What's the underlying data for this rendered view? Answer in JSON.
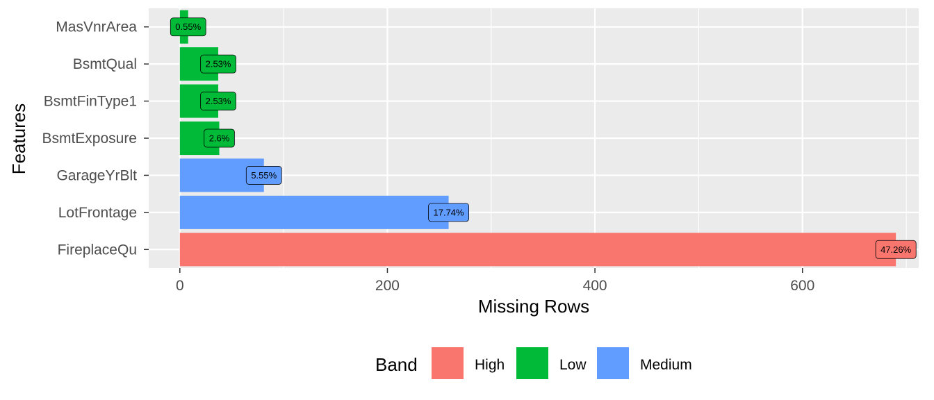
{
  "chart_data": {
    "type": "bar",
    "orientation": "horizontal",
    "categories": [
      "MasVnrArea",
      "BsmtQual",
      "BsmtFinType1",
      "BsmtExposure",
      "GarageYrBlt",
      "LotFrontage",
      "FireplaceQu"
    ],
    "values": [
      8,
      37,
      37,
      38,
      81,
      259,
      690
    ],
    "labels": [
      "0.55%",
      "2.53%",
      "2.53%",
      "2.6%",
      "5.55%",
      "17.74%",
      "47.26%"
    ],
    "bands": [
      "Low",
      "Low",
      "Low",
      "Low",
      "Medium",
      "Medium",
      "High"
    ],
    "xlabel": "Missing Rows",
    "ylabel": "Features",
    "xlim": [
      -30,
      712
    ],
    "xticks": [
      0,
      200,
      400,
      600
    ],
    "grid": true,
    "legend": {
      "title": "Band",
      "position": "bottom",
      "entries": [
        {
          "name": "High",
          "color": "#F8766D"
        },
        {
          "name": "Low",
          "color": "#00BA38"
        },
        {
          "name": "Medium",
          "color": "#619CFF"
        }
      ]
    },
    "colors": {
      "High": "#F8766D",
      "Low": "#00BA38",
      "Medium": "#619CFF"
    }
  }
}
